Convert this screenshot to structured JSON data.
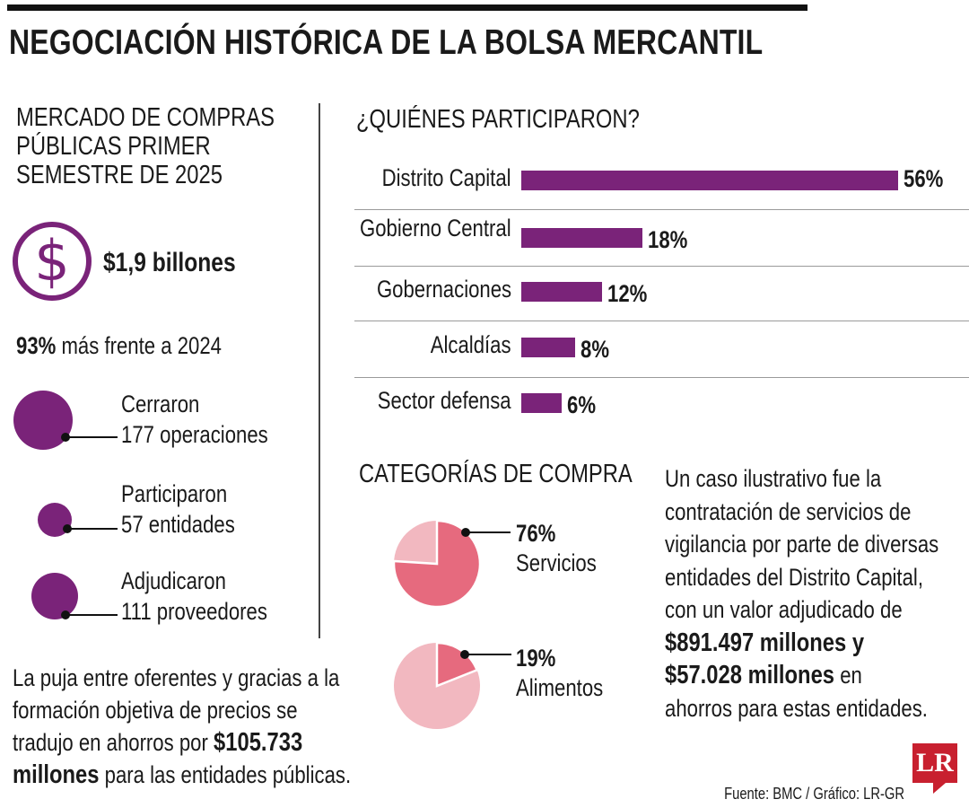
{
  "title": "NEGOCIACIÓN HISTÓRICA DE LA BOLSA MERCANTIL",
  "left": {
    "heading": [
      "MERCADO DE COMPRAS",
      "PÚBLICAS PRIMER",
      "SEMESTRE DE 2025"
    ],
    "dollar_symbol": "$",
    "amount": "$1,9 billones",
    "growth_pct": "93%",
    "growth_text": "más frente a 2024",
    "stats": [
      {
        "label": "Cerraron",
        "value": "177 operaciones"
      },
      {
        "label": "Participaron",
        "value": "57 entidades"
      },
      {
        "label": "Adjudicaron",
        "value": "111 proveedores"
      }
    ],
    "footer_lines": [
      "La puja entre oferentes y gracias a la",
      "formación objetiva de precios se",
      "tradujo en ahorros por"
    ],
    "footer_bold_1": "$105.733",
    "footer_bold_2": "millones",
    "footer_tail": "para las entidades públicas."
  },
  "chart_data": [
    {
      "type": "bar",
      "title": "¿QUIÉNES PARTICIPARON?",
      "categories": [
        "Distrito Capital",
        "Gobierno Central",
        "Gobernaciones",
        "Alcaldías",
        "Sector defensa"
      ],
      "values": [
        56,
        18,
        12,
        8,
        6
      ],
      "value_labels": [
        "56%",
        "18%",
        "12%",
        "8%",
        "6%"
      ],
      "xlim": [
        0,
        56
      ],
      "orientation": "horizontal"
    },
    {
      "type": "pie",
      "title": "CATEGORÍAS DE COMPRA",
      "charts": [
        {
          "label": "Servicios",
          "value": 76,
          "value_label": "76%"
        },
        {
          "label": "Alimentos",
          "value": 19,
          "value_label": "19%"
        }
      ]
    }
  ],
  "case": {
    "lines": [
      "Un caso ilustrativo fue la",
      "contratación de servicios de",
      "vigilancia por parte de diversas",
      "entidades del Distrito Capital,",
      "con un valor adjudicado de"
    ],
    "bold_1": "$891.497 millones y",
    "bold_2": "$57.028 millones",
    "tail_1": "en",
    "tail_2": "ahorros para estas entidades."
  },
  "source": "Fuente: BMC / Gráfico: LR-GR",
  "logo": "LR",
  "colors": {
    "purple": "#7a2379",
    "pie_strong": "#e66a7e",
    "pie_light": "#f2b8c0"
  }
}
